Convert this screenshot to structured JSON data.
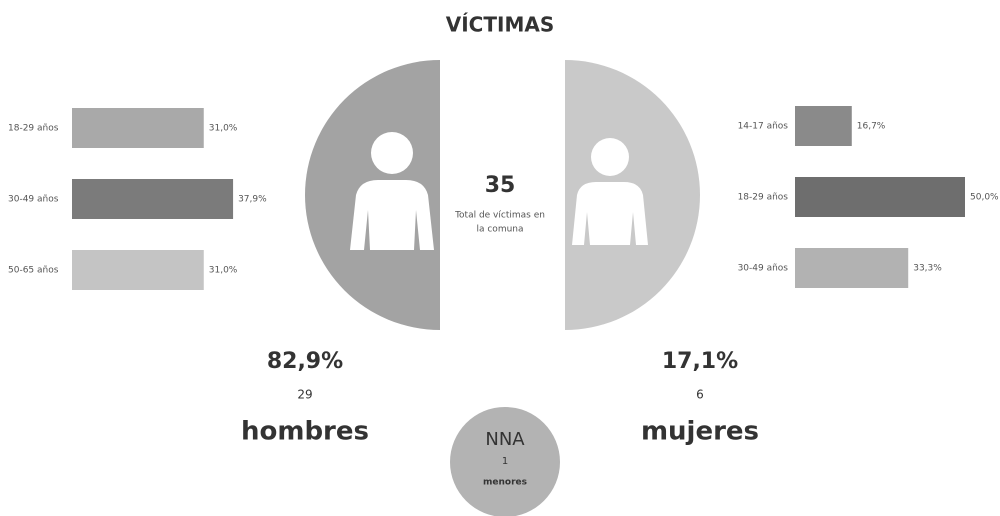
{
  "title": "VÍCTIMAS",
  "center": {
    "value": 35,
    "label_lines": [
      "Total de víctimas en",
      "la comuna"
    ]
  },
  "men": {
    "percent": "82,9%",
    "count": 29,
    "label": "hombres"
  },
  "women": {
    "percent": "17,1%",
    "count": 6,
    "label": "mujeres"
  },
  "nna": {
    "label": "NNA",
    "count": 1,
    "sublabel": "menores"
  },
  "chart_data": [
    {
      "type": "bar",
      "orientation": "horizontal",
      "categories": [
        "18-29 años",
        "30-49 años",
        "50-65 años"
      ],
      "values": [
        31.0,
        37.9,
        31.0
      ],
      "value_labels": [
        "31,0%",
        "37,9%",
        "31,0%"
      ],
      "colors": [
        "#a9a9a9",
        "#7b7b7b",
        "#c4c4c4"
      ],
      "xlim": [
        0,
        40
      ]
    },
    {
      "type": "bar",
      "orientation": "horizontal",
      "categories": [
        "14-17 años",
        "18-29 años",
        "30-49 años"
      ],
      "values": [
        16.7,
        50.0,
        33.3
      ],
      "value_labels": [
        "16,7%",
        "50,0%",
        "33,3%"
      ],
      "colors": [
        "#8a8a8a",
        "#6e6e6e",
        "#b2b2b2"
      ],
      "xlim": [
        0,
        50
      ]
    }
  ]
}
